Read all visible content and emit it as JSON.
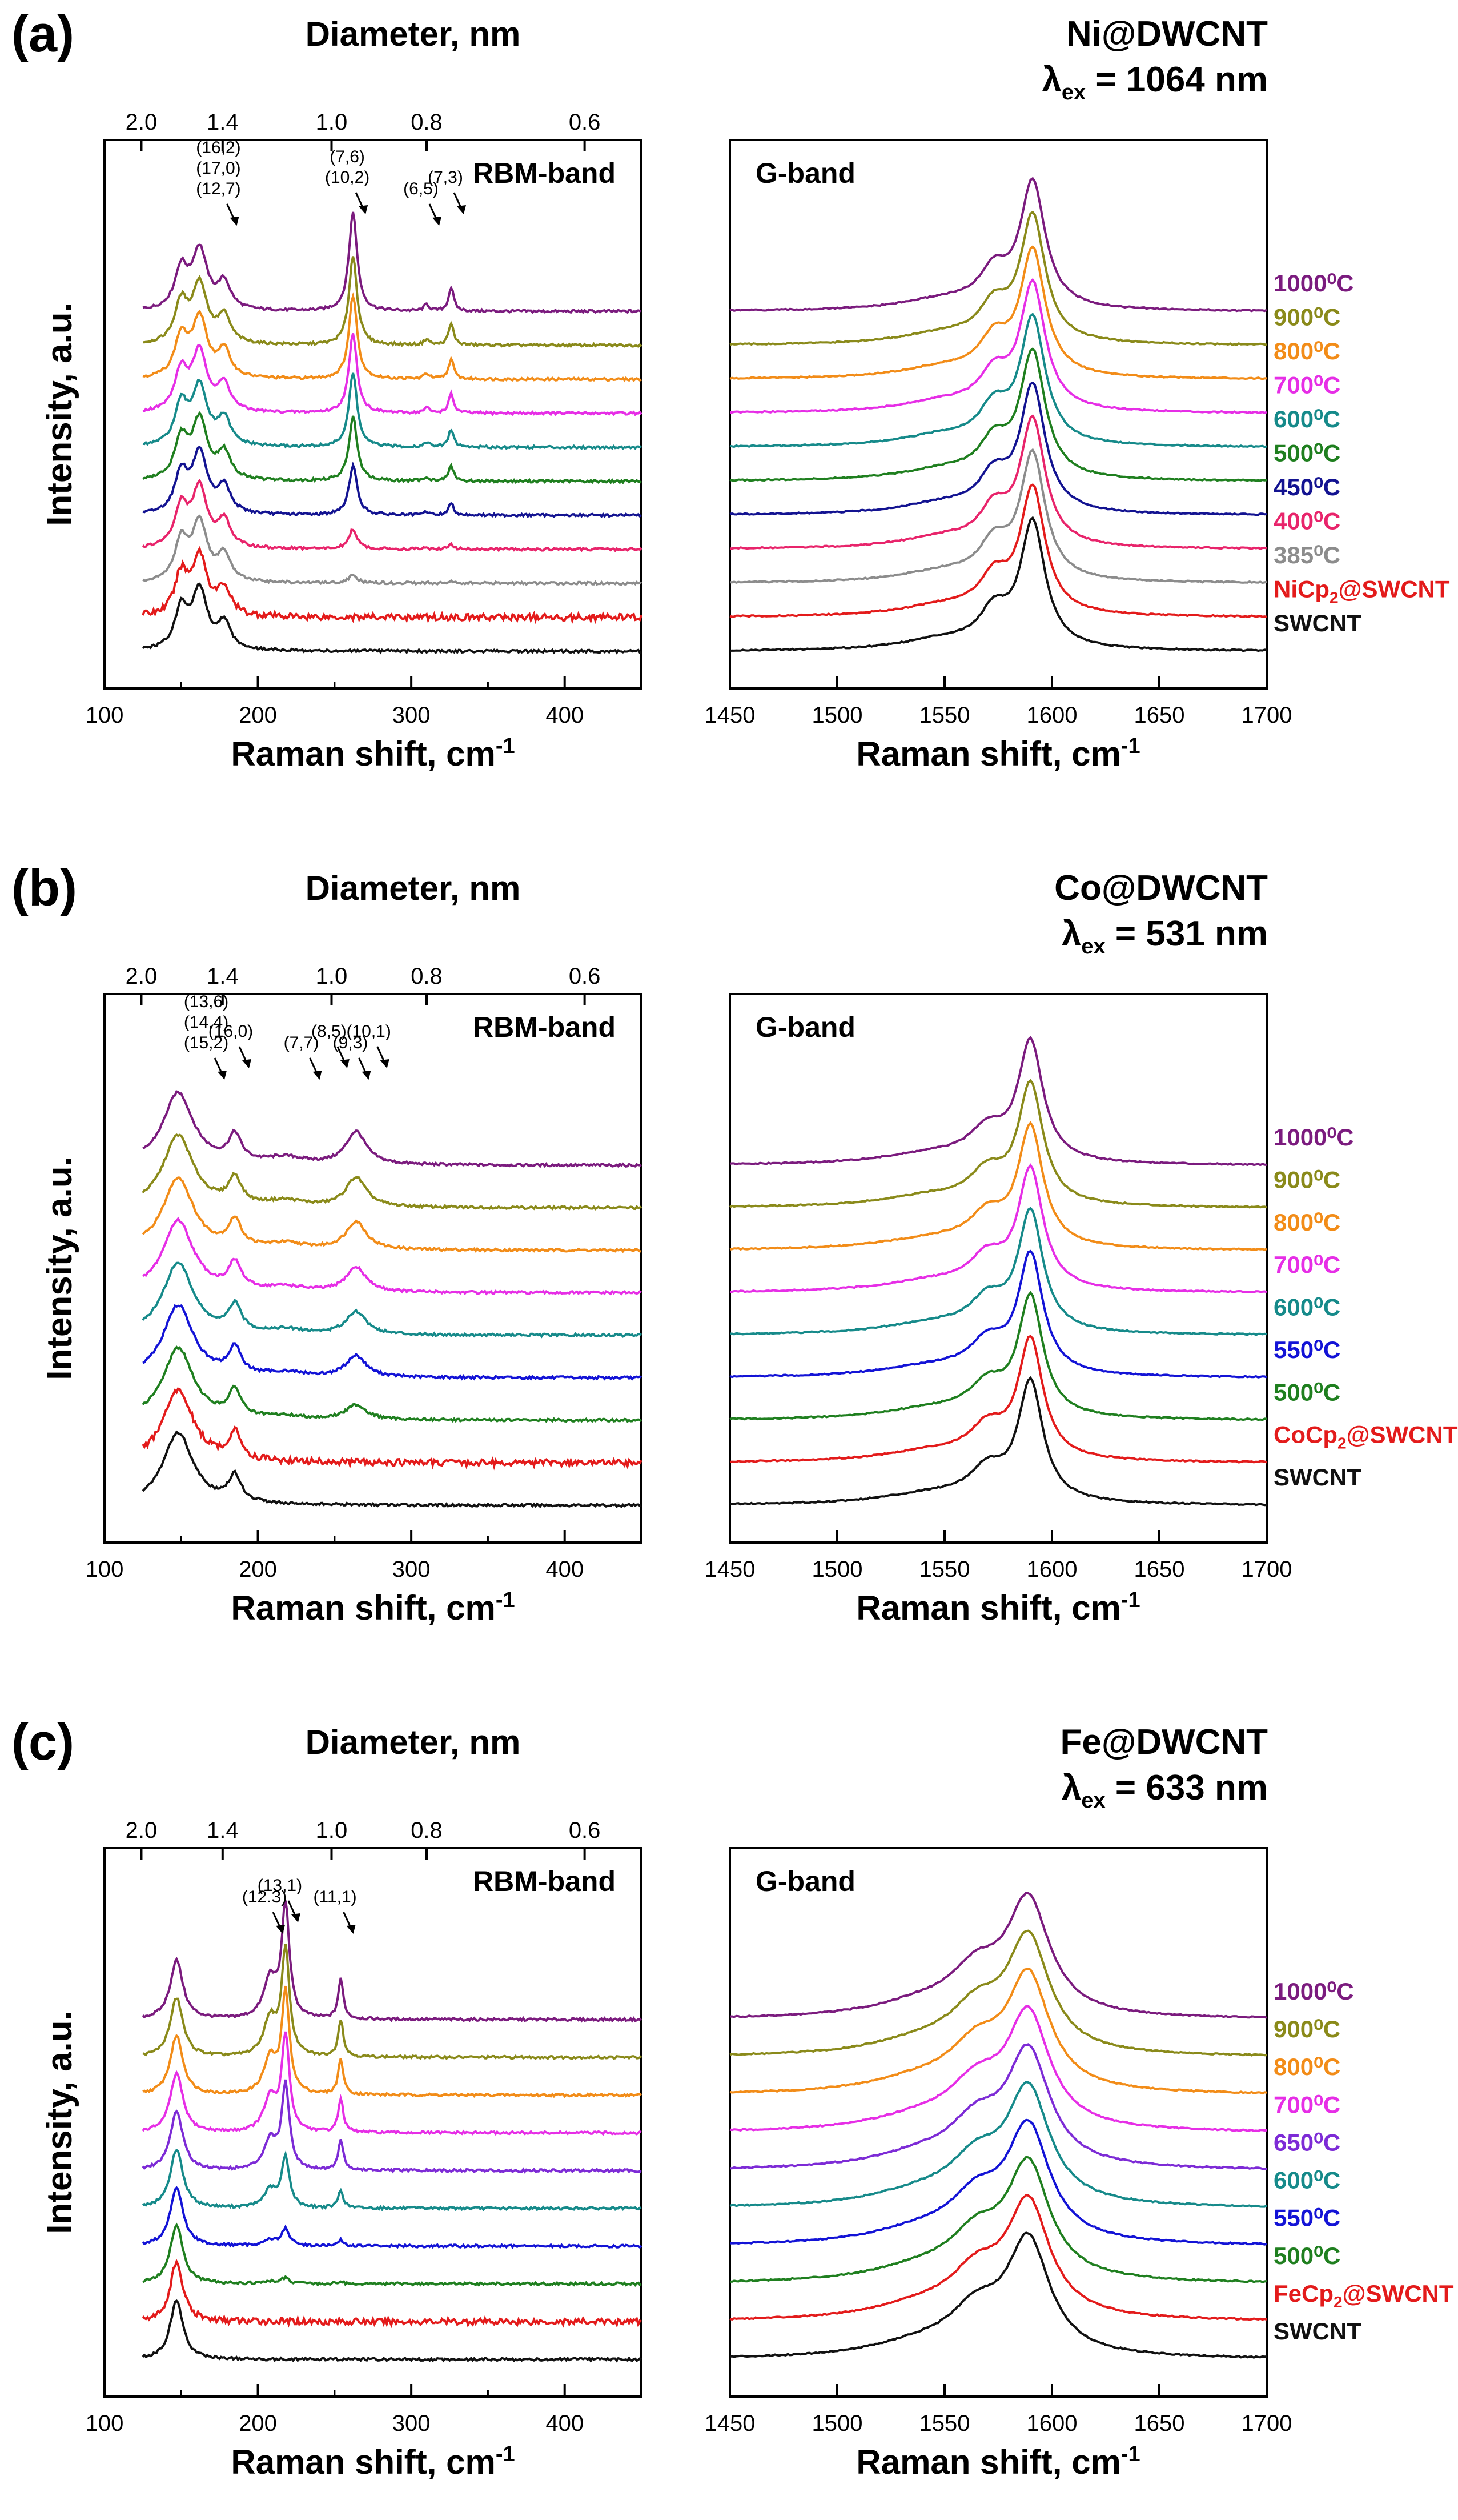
{
  "figure": {
    "colors": {
      "1000": "#7b1b7e",
      "900": "#8a8a1a",
      "800": "#f28c18",
      "700": "#e62ee6",
      "650": "#7d2bd6",
      "600": "#168a8a",
      "550": "#1313d6",
      "500": "#1f7f1f",
      "450": "#131391",
      "400": "#e8246b",
      "385": "#8c8c8c",
      "precursor": "#e31b1b",
      "SWCNT": "#111111"
    }
  },
  "chart_data": [
    {
      "panel": "(a)",
      "material": "Ni@DWCNT",
      "lambda_symbol": "λ",
      "lambda_sub": "ex",
      "lambda_value": "= 1064 nm",
      "rbm": {
        "type": "line",
        "title": "RBM-band",
        "xlabel": "Raman shift, cm",
        "xlabel_sup": "-1",
        "ylabel": "Intensity, a.u.",
        "toplabel": "Diameter, nm",
        "xlim": [
          100,
          450
        ],
        "xticks": [
          "100",
          "200",
          "300",
          "400"
        ],
        "top_ticks": [
          {
            "label": "2.0",
            "x": 124
          },
          {
            "label": "1.4",
            "x": 177
          },
          {
            "label": "1.0",
            "x": 248
          },
          {
            "label": "0.8",
            "x": 310
          },
          {
            "label": "0.6",
            "x": 413
          }
        ],
        "peaks": [
          {
            "pos": 150,
            "w": 5,
            "h": 0.3
          },
          {
            "pos": 162,
            "w": 6,
            "h": 0.45
          },
          {
            "pos": 178,
            "w": 5,
            "h": 0.2
          },
          {
            "pos": 262,
            "w": 3.2,
            "h": 0.75
          },
          {
            "pos": 310,
            "w": 2,
            "h": 0.05
          },
          {
            "pos": 326,
            "w": 2,
            "h": 0.18
          }
        ],
        "annotations": [
          {
            "lines": [
              "(16,2)",
              "(17,0)",
              "(12,7)"
            ],
            "peak": 178
          },
          {
            "lines": [
              "(7,6)",
              "(10,2)"
            ],
            "peak": 262
          },
          {
            "lines": [
              "(6,5)"
            ],
            "peak": 310
          },
          {
            "lines": [
              "(7,3)"
            ],
            "peak": 326
          }
        ]
      },
      "g": {
        "type": "line",
        "title": "G-band",
        "xlabel": "Raman shift, cm",
        "xlabel_sup": "-1",
        "xlim": [
          1450,
          1700
        ],
        "xticks": [
          "1450",
          "1500",
          "1550",
          "1600",
          "1650",
          "1700"
        ],
        "peaks": [
          {
            "pos": 1591,
            "w": 7,
            "h": 0.95
          },
          {
            "pos": 1573,
            "w": 8,
            "h": 0.25
          },
          {
            "pos": 1550,
            "w": 25,
            "h": 0.08
          }
        ]
      },
      "series": [
        {
          "name": "1000⁰C",
          "key": "1000",
          "growth": 1.0
        },
        {
          "name": "900⁰C",
          "key": "900",
          "growth": 0.9
        },
        {
          "name": "800⁰C",
          "key": "800",
          "growth": 0.85
        },
        {
          "name": "700⁰C",
          "key": "700",
          "growth": 0.8
        },
        {
          "name": "600⁰C",
          "key": "600",
          "growth": 0.75
        },
        {
          "name": "500⁰C",
          "key": "500",
          "growth": 0.65
        },
        {
          "name": "450⁰C",
          "key": "450",
          "growth": 0.5
        },
        {
          "name": "400⁰C",
          "key": "400",
          "growth": 0.2
        },
        {
          "name": "385⁰C",
          "key": "385",
          "growth": 0.08
        },
        {
          "name": "NiCp",
          "sub": "2",
          "tail": "@SWCNT",
          "key": "precursor",
          "growth": 0
        },
        {
          "name": "SWCNT",
          "key": "SWCNT",
          "growth": 0
        }
      ]
    },
    {
      "panel": "(b)",
      "material": "Co@DWCNT",
      "lambda_symbol": "λ",
      "lambda_sub": "ex",
      "lambda_value": "= 531 nm",
      "rbm": {
        "type": "line",
        "title": "RBM-band",
        "xlabel": "Raman shift, cm",
        "xlabel_sup": "-1",
        "ylabel": "Intensity, a.u.",
        "toplabel": "Diameter, nm",
        "xlim": [
          100,
          450
        ],
        "xticks": [
          "100",
          "200",
          "300",
          "400"
        ],
        "top_ticks": [
          {
            "label": "2.0",
            "x": 124
          },
          {
            "label": "1.4",
            "x": 177
          },
          {
            "label": "1.0",
            "x": 248
          },
          {
            "label": "0.8",
            "x": 310
          },
          {
            "label": "0.6",
            "x": 413
          }
        ],
        "peaks": [
          {
            "pos": 148,
            "w": 12,
            "h": 0.55
          },
          {
            "pos": 185,
            "w": 5,
            "h": 0.2
          },
          {
            "pos": 218,
            "w": 15,
            "h": 0.05
          },
          {
            "pos": 264,
            "w": 8,
            "h": 0.25
          }
        ],
        "annotations": [
          {
            "lines": [
              "(13,6)",
              "(14,4)",
              "(15,2)"
            ],
            "peak": 170
          },
          {
            "lines": [
              "(16,0)"
            ],
            "peak": 186
          },
          {
            "lines": [
              "(7,7)"
            ],
            "peak": 232
          },
          {
            "lines": [
              "(8,5)"
            ],
            "peak": 250
          },
          {
            "lines": [
              "(9,3)"
            ],
            "peak": 264
          },
          {
            "lines": [
              "(10,1)"
            ],
            "peak": 276
          }
        ]
      },
      "g": {
        "type": "line",
        "title": "G-band",
        "xlabel": "Raman shift, cm",
        "xlabel_sup": "-1",
        "xlim": [
          1450,
          1700
        ],
        "xticks": [
          "1450",
          "1500",
          "1550",
          "1600",
          "1650",
          "1700"
        ],
        "peaks": [
          {
            "pos": 1590,
            "w": 7,
            "h": 0.9
          },
          {
            "pos": 1570,
            "w": 10,
            "h": 0.22
          },
          {
            "pos": 1545,
            "w": 30,
            "h": 0.08
          }
        ]
      },
      "series": [
        {
          "name": "1000⁰C",
          "key": "1000",
          "growth": 1.0
        },
        {
          "name": "900⁰C",
          "key": "900",
          "growth": 0.9
        },
        {
          "name": "800⁰C",
          "key": "800",
          "growth": 0.85
        },
        {
          "name": "700⁰C",
          "key": "700",
          "growth": 0.75
        },
        {
          "name": "600⁰C",
          "key": "600",
          "growth": 0.7
        },
        {
          "name": "550⁰C",
          "key": "550",
          "growth": 0.65
        },
        {
          "name": "500⁰C",
          "key": "500",
          "growth": 0.45
        },
        {
          "name": "CoCp",
          "sub": "2",
          "tail": "@SWCNT",
          "key": "precursor",
          "growth": 0
        },
        {
          "name": "SWCNT",
          "key": "SWCNT",
          "growth": 0
        }
      ]
    },
    {
      "panel": "(c)",
      "material": "Fe@DWCNT",
      "lambda_symbol": "λ",
      "lambda_sub": "ex",
      "lambda_value": "= 633 nm",
      "rbm": {
        "type": "line",
        "title": "RBM-band",
        "xlabel": "Raman shift, cm",
        "xlabel_sup": "-1",
        "ylabel": "Intensity, a.u.",
        "toplabel": "Diameter, nm",
        "xlim": [
          100,
          450
        ],
        "xticks": [
          "100",
          "200",
          "300",
          "400"
        ],
        "top_ticks": [
          {
            "label": "2.0",
            "x": 124
          },
          {
            "label": "1.4",
            "x": 177
          },
          {
            "label": "1.0",
            "x": 248
          },
          {
            "label": "0.8",
            "x": 310
          },
          {
            "label": "0.6",
            "x": 413
          }
        ],
        "peaks": [
          {
            "pos": 147,
            "w": 5,
            "h": 0.45
          },
          {
            "pos": 208,
            "w": 5,
            "h": 0.3
          },
          {
            "pos": 218,
            "w": 3,
            "h": 0.85
          },
          {
            "pos": 254,
            "w": 2,
            "h": 0.3
          }
        ],
        "annotations": [
          {
            "lines": [
              "(12.3)"
            ],
            "peak": 208
          },
          {
            "lines": [
              "(13,1)"
            ],
            "peak": 218
          },
          {
            "lines": [
              "(11,1)"
            ],
            "peak": 254
          }
        ]
      },
      "g": {
        "type": "line",
        "title": "G-band",
        "xlabel": "Raman shift, cm",
        "xlabel_sup": "-1",
        "xlim": [
          1450,
          1700
        ],
        "xticks": [
          "1450",
          "1500",
          "1550",
          "1600",
          "1650",
          "1700"
        ],
        "peaks": [
          {
            "pos": 1589,
            "w": 12,
            "h": 0.85
          },
          {
            "pos": 1565,
            "w": 15,
            "h": 0.3
          },
          {
            "pos": 1540,
            "w": 30,
            "h": 0.1
          }
        ]
      },
      "series": [
        {
          "name": "1000⁰C",
          "key": "1000",
          "growth": 1.0
        },
        {
          "name": "900⁰C",
          "key": "900",
          "growth": 0.95
        },
        {
          "name": "800⁰C",
          "key": "800",
          "growth": 0.9
        },
        {
          "name": "700⁰C",
          "key": "700",
          "growth": 0.85
        },
        {
          "name": "650⁰C",
          "key": "650",
          "growth": 0.75
        },
        {
          "name": "600⁰C",
          "key": "600",
          "growth": 0.45
        },
        {
          "name": "550⁰C",
          "key": "550",
          "growth": 0.15
        },
        {
          "name": "500⁰C",
          "key": "500",
          "growth": 0.05
        },
        {
          "name": "FeCp",
          "sub": "2",
          "tail": "@SWCNT",
          "key": "precursor",
          "growth": 0
        },
        {
          "name": "SWCNT",
          "key": "SWCNT",
          "growth": 0
        }
      ]
    }
  ]
}
